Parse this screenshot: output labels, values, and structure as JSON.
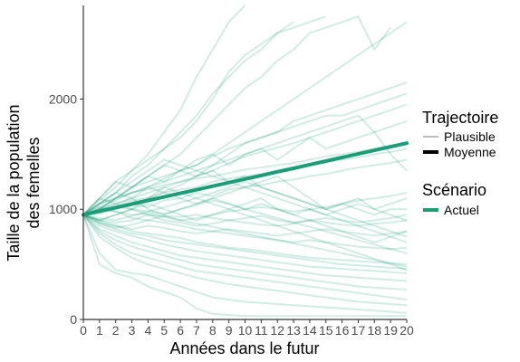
{
  "chart_data": {
    "type": "line",
    "xlabel": "Années dans le futur",
    "ylabel_lines": [
      "Taille de la population",
      "des femelles"
    ],
    "x": [
      0,
      1,
      2,
      3,
      4,
      5,
      6,
      7,
      8,
      9,
      10,
      11,
      12,
      13,
      14,
      15,
      16,
      17,
      18,
      19,
      20
    ],
    "x_ticks": [
      "0",
      "1",
      "2",
      "3",
      "4",
      "5",
      "6",
      "7",
      "8",
      "9",
      "10",
      "11",
      "12",
      "13",
      "14",
      "15",
      "16",
      "17",
      "18",
      "19",
      "20"
    ],
    "y_ticks": [
      0,
      1000,
      2000
    ],
    "xlim": [
      0,
      20
    ],
    "ylim": [
      0,
      2850
    ],
    "grid": false,
    "legend_placement": "right",
    "colors": {
      "scenario": "#1b9e77",
      "plausible_legend": "#bdbdbd",
      "moyenne_legend": "#000000"
    },
    "legend": {
      "trajectoire_title": "Trajectoire",
      "trajectoire_items": [
        "Plausible",
        "Moyenne"
      ],
      "scenario_title": "Scénario",
      "scenario_items": [
        "Actuel"
      ]
    },
    "mean_series": {
      "name": "Moyenne",
      "values": [
        950,
        982,
        1015,
        1047,
        1080,
        1112,
        1145,
        1177,
        1210,
        1242,
        1275,
        1307,
        1340,
        1372,
        1405,
        1437,
        1470,
        1502,
        1535,
        1567,
        1600
      ]
    },
    "plausible_series": [
      {
        "values": [
          950,
          1080,
          1200,
          1350,
          1500,
          1700,
          1900,
          2200,
          2450,
          2700,
          2850
        ]
      },
      {
        "values": [
          950,
          1050,
          1150,
          1300,
          1400,
          1550,
          1650,
          1800,
          2000,
          2250,
          2400,
          2500,
          2600,
          2650,
          2700,
          2750
        ]
      },
      {
        "values": [
          950,
          1100,
          1250,
          1350,
          1450,
          1550,
          1700,
          1850,
          2050,
          2200,
          2350,
          2450,
          2600,
          2700
        ]
      },
      {
        "values": [
          950,
          1000,
          1100,
          1200,
          1300,
          1400,
          1500,
          1650,
          1800,
          1950,
          2100,
          2200,
          2350,
          2450,
          2600,
          2650,
          2700,
          2750,
          2450,
          2650
        ]
      },
      {
        "values": [
          950,
          1050,
          1100,
          1150,
          1200,
          1250,
          1350,
          1400,
          1500,
          1600,
          1700,
          1800,
          1900,
          2000,
          2100,
          2200,
          2300,
          2400,
          2500,
          2600,
          2700
        ]
      },
      {
        "values": [
          950,
          1000,
          1050,
          1100,
          1150,
          1200,
          1250,
          1300,
          1400,
          1500,
          1600,
          1650,
          1700,
          1800,
          1850,
          1900,
          1950,
          2000,
          2050,
          2100,
          2150
        ]
      },
      {
        "values": [
          950,
          1020,
          1080,
          1150,
          1200,
          1280,
          1350,
          1400,
          1480,
          1550,
          1600,
          1650,
          1700,
          1750,
          1800,
          1850,
          1850,
          1900,
          1950,
          2000,
          2050
        ]
      },
      {
        "values": [
          950,
          980,
          1010,
          1060,
          1100,
          1160,
          1220,
          1300,
          1350,
          1420,
          1480,
          1520,
          1560,
          1600,
          1650,
          1700,
          1750,
          1800,
          1850,
          1900,
          1950
        ]
      },
      {
        "values": [
          950,
          1100,
          1250,
          1200,
          1300,
          1400,
          1350,
          1450,
          1500,
          1400,
          1500,
          1550,
          1450,
          1550,
          1650,
          1550,
          1600,
          1650,
          1700,
          1750,
          1800
        ]
      },
      {
        "values": [
          950,
          1050,
          1100,
          1150,
          1180,
          1220,
          1250,
          1280,
          1300,
          1330,
          1360,
          1380,
          1400,
          1420,
          1450,
          1480,
          1500,
          1520,
          1550,
          1580,
          1600
        ]
      },
      {
        "values": [
          950,
          990,
          1030,
          1080,
          1100,
          1150,
          1180,
          1200,
          1250,
          1280,
          1300,
          1320,
          1350,
          1380,
          1400,
          1430,
          1450,
          1470,
          1500,
          1520,
          1550
        ]
      },
      {
        "values": [
          950,
          960,
          1000,
          1050,
          1020,
          1080,
          1100,
          1150,
          1120,
          1180,
          1200,
          1220,
          1250,
          1270,
          1300,
          1320,
          1350,
          1380,
          1400,
          1420,
          1450
        ]
      },
      {
        "values": [
          950,
          1000,
          1100,
          1200,
          1250,
          1300,
          1350,
          1300,
          1350,
          1250,
          1300,
          1200,
          1150,
          1100,
          1050,
          1000,
          1050,
          1000,
          950,
          1000,
          1000
        ]
      },
      {
        "values": [
          950,
          1050,
          1150,
          1100,
          1200,
          1150,
          1100,
          1050,
          1100,
          1050,
          1000,
          1050,
          1000,
          950,
          1000,
          950,
          1000,
          1050,
          1000,
          1050,
          1100
        ]
      },
      {
        "values": [
          950,
          900,
          880,
          900,
          950,
          930,
          900,
          920,
          950,
          980,
          1000,
          1020,
          1000,
          980,
          1000,
          1020,
          1050,
          1080,
          1100,
          1120,
          1150
        ]
      },
      {
        "values": [
          950,
          1000,
          980,
          950,
          960,
          940,
          930,
          950,
          920,
          900,
          920,
          940,
          900,
          880,
          900,
          920,
          900,
          880,
          900,
          920,
          950
        ]
      },
      {
        "values": [
          950,
          900,
          950,
          1000,
          950,
          900,
          880,
          850,
          870,
          900,
          880,
          860,
          850,
          870,
          900,
          880,
          860,
          850,
          870,
          880,
          900
        ]
      },
      {
        "values": [
          950,
          880,
          850,
          820,
          850,
          830,
          800,
          780,
          800,
          820,
          800,
          780,
          760,
          780,
          800,
          820,
          800,
          780,
          760,
          780,
          800
        ]
      },
      {
        "values": [
          950,
          1020,
          980,
          920,
          900,
          880,
          850,
          820,
          800,
          780,
          760,
          740,
          720,
          700,
          720,
          700,
          680,
          660,
          650,
          640,
          650
        ]
      },
      {
        "values": [
          950,
          900,
          850,
          800,
          780,
          760,
          740,
          700,
          680,
          650,
          640,
          620,
          600,
          580,
          560,
          550,
          540,
          530,
          520,
          510,
          500
        ]
      },
      {
        "values": [
          950,
          880,
          820,
          780,
          760,
          720,
          700,
          680,
          660,
          640,
          620,
          600,
          580,
          560,
          540,
          520,
          500,
          490,
          480,
          470,
          460
        ]
      },
      {
        "values": [
          950,
          850,
          800,
          760,
          720,
          680,
          650,
          620,
          600,
          580,
          560,
          540,
          520,
          500,
          480,
          470,
          460,
          450,
          440,
          430,
          420
        ]
      },
      {
        "values": [
          950,
          820,
          760,
          700,
          660,
          620,
          580,
          560,
          540,
          520,
          500,
          480,
          460,
          440,
          420,
          400,
          390,
          380,
          370,
          360,
          350
        ]
      },
      {
        "values": [
          950,
          800,
          720,
          660,
          620,
          580,
          540,
          500,
          480,
          460,
          440,
          420,
          400,
          380,
          360,
          340,
          320,
          300,
          290,
          280,
          270
        ]
      },
      {
        "values": [
          950,
          780,
          680,
          600,
          560,
          520,
          480,
          440,
          420,
          400,
          380,
          360,
          340,
          320,
          300,
          280,
          260,
          240,
          220,
          200,
          180
        ]
      },
      {
        "values": [
          950,
          750,
          650,
          560,
          500,
          460,
          420,
          380,
          350,
          320,
          300,
          280,
          260,
          240,
          220,
          200,
          180,
          160,
          150,
          140,
          130
        ]
      },
      {
        "values": [
          950,
          600,
          450,
          420,
          400,
          350,
          300,
          250,
          200,
          180,
          160,
          150,
          140,
          130,
          120,
          110,
          100,
          90,
          80,
          70,
          60
        ]
      },
      {
        "values": [
          950,
          500,
          420,
          380,
          300,
          250,
          200,
          100,
          50,
          40,
          30,
          30,
          30,
          30,
          30,
          30,
          30,
          30,
          30,
          30,
          30
        ]
      },
      {
        "values": [
          950,
          900,
          950,
          1000,
          1050,
          1000,
          950,
          900,
          950,
          1000,
          1050,
          1100,
          1000,
          950,
          900,
          850,
          800,
          750,
          700,
          750,
          800
        ]
      },
      {
        "values": [
          950,
          1000,
          1050,
          1100,
          1000,
          950,
          1000,
          1050,
          1100,
          1150,
          1200,
          1250,
          1300,
          1200,
          1100,
          1000,
          1050,
          1100,
          1000,
          950,
          900
        ]
      },
      {
        "values": [
          950,
          1100,
          1050,
          1000,
          1100,
          1200,
          1150,
          1100,
          1050,
          1000,
          950,
          900,
          850,
          800,
          750,
          700,
          650,
          600,
          550,
          500,
          450
        ]
      },
      {
        "values": [
          950,
          980,
          1020,
          1000,
          980,
          960,
          1000,
          1040,
          1080,
          1050,
          1000,
          960,
          920,
          880,
          840,
          800,
          760,
          720,
          680,
          640,
          600
        ]
      },
      {
        "values": [
          950,
          920,
          900,
          940,
          980,
          1020,
          1060,
          1100,
          1150,
          1200,
          1250,
          1200,
          1150,
          1100,
          1050,
          1000,
          950,
          900,
          850,
          800,
          750
        ]
      },
      {
        "values": [
          950,
          1050,
          1150,
          1250,
          1350,
          1450,
          1400,
          1350,
          1300,
          1250,
          1200,
          1150,
          1100,
          1050,
          1000,
          950,
          900,
          850,
          800,
          750,
          700
        ]
      },
      {
        "values": [
          950,
          1000,
          1100,
          1200,
          1300,
          1250,
          1300,
          1350,
          1400,
          1450,
          1500,
          1550,
          1600,
          1650,
          1700,
          1750,
          1800,
          1850,
          1700,
          1500,
          1350
        ]
      },
      {
        "values": [
          950,
          870,
          830,
          860,
          900,
          940,
          900,
          870,
          840,
          810,
          780,
          750,
          720,
          690,
          660,
          630,
          600,
          570,
          540,
          510,
          480
        ]
      }
    ]
  }
}
